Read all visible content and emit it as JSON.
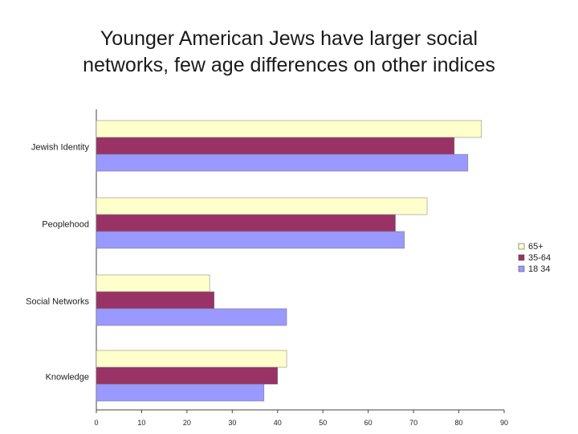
{
  "title_lines": [
    "Younger American Jews have larger social",
    "networks, few age differences on other indices"
  ],
  "chart_data": {
    "type": "bar",
    "orientation": "horizontal",
    "categories": [
      "Jewish Identity",
      "Peoplehood",
      "Social Networks",
      "Knowledge"
    ],
    "series": [
      {
        "name": "65+",
        "values": [
          85,
          73,
          25,
          42
        ],
        "color": "#ffffcc"
      },
      {
        "name": "35-64",
        "values": [
          79,
          66,
          26,
          40
        ],
        "color": "#993366"
      },
      {
        "name": "18 34",
        "values": [
          82,
          68,
          42,
          37
        ],
        "color": "#9999ff"
      }
    ],
    "xlim": [
      0,
      90
    ],
    "xticks": [
      "0",
      "10",
      "20",
      "30",
      "40",
      "50",
      "60",
      "70",
      "80",
      "90"
    ],
    "legend_position": "right",
    "grid": false
  }
}
